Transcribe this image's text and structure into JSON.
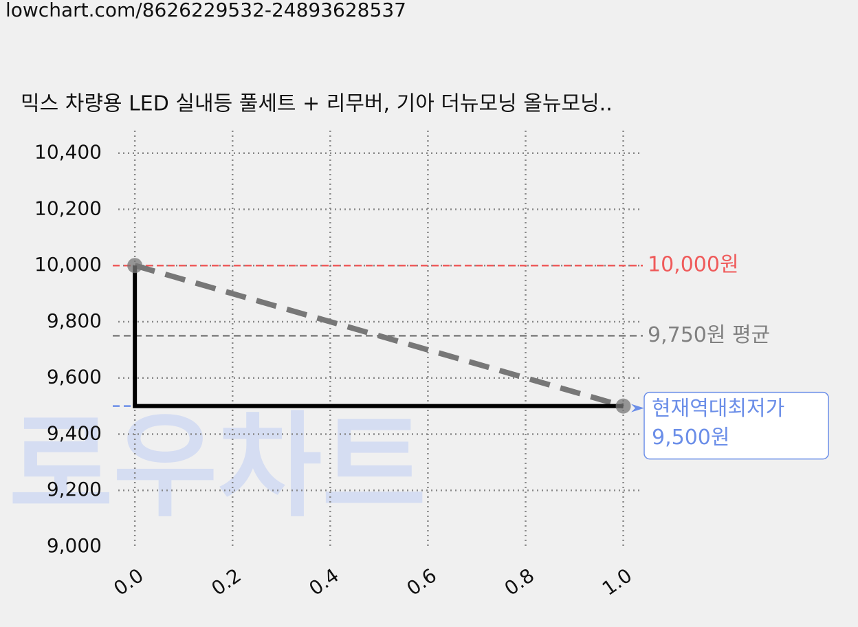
{
  "page_url": "lowchart.com/8626229532-24893628537",
  "watermark": "로우차트",
  "chart_data": {
    "type": "line",
    "title": "믹스 차량용 LED 실내등 풀세트 + 리무버, 기아 더뉴모닝 올뉴모닝..",
    "x": [
      0,
      1
    ],
    "values": [
      10000,
      9500
    ],
    "line_color": "#000000",
    "trend_color": "#777777",
    "xlim": [
      -0.034,
      1.04
    ],
    "ylim": [
      9000,
      10480
    ],
    "xticks": [
      {
        "value": 0,
        "label": "0.0"
      },
      {
        "value": 0.2,
        "label": "0.2"
      },
      {
        "value": 0.4,
        "label": "0.4"
      },
      {
        "value": 0.6,
        "label": "0.6"
      },
      {
        "value": 0.8,
        "label": "0.8"
      },
      {
        "value": 1,
        "label": "1.0"
      }
    ],
    "yticks": [
      {
        "value": 9000,
        "label": "9,000"
      },
      {
        "value": 9200,
        "label": "9,200"
      },
      {
        "value": 9400,
        "label": "9,400"
      },
      {
        "value": 9600,
        "label": "9,600"
      },
      {
        "value": 9800,
        "label": "9,800"
      },
      {
        "value": 10000,
        "label": "10,000"
      },
      {
        "value": 10200,
        "label": "10,200"
      },
      {
        "value": 10400,
        "label": "10,400"
      }
    ],
    "grid": true,
    "reference_lines": [
      {
        "value": 10000,
        "label": "10,000원",
        "color": "#ef5a5a"
      },
      {
        "value": 9750,
        "label": "9,750원 평균",
        "color": "#808080"
      },
      {
        "value": 9500,
        "label_lines": [
          "현재역대최저가",
          "9,500원"
        ],
        "color": "#6b8ee8"
      }
    ]
  }
}
